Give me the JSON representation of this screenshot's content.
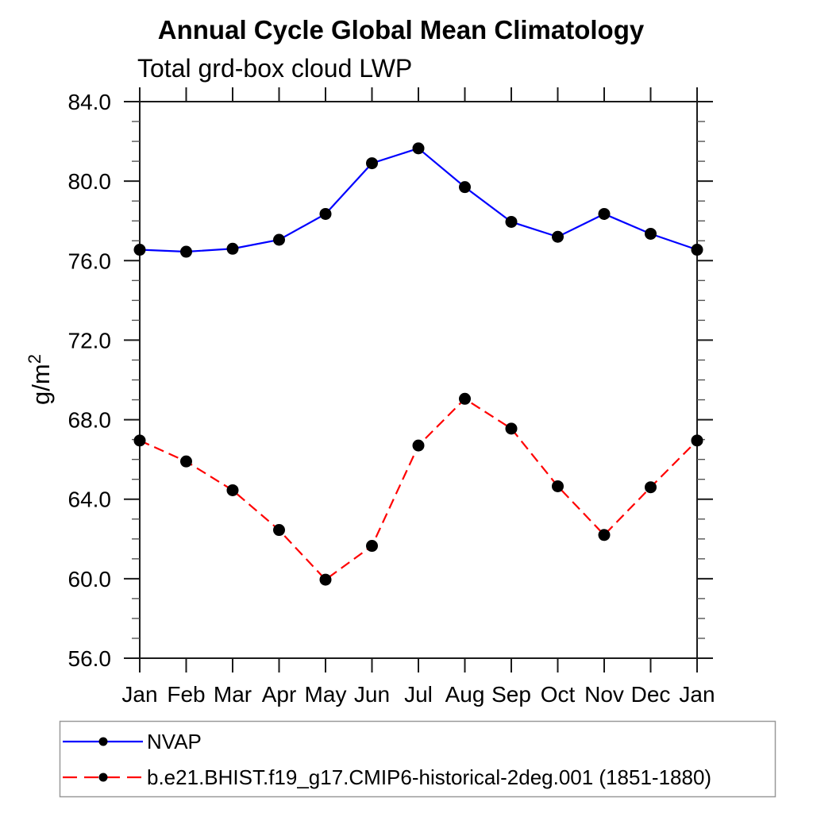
{
  "chart_data": {
    "type": "line",
    "title": "Annual Cycle Global Mean Climatology",
    "subtitle": "Total grd-box cloud LWP",
    "ylabel": "g/m²",
    "ylabel_base": "g/m",
    "ylabel_sup": "2",
    "categories": [
      "Jan",
      "Feb",
      "Mar",
      "Apr",
      "May",
      "Jun",
      "Jul",
      "Aug",
      "Sep",
      "Oct",
      "Nov",
      "Dec",
      "Jan"
    ],
    "ylim": [
      56.0,
      84.0
    ],
    "ytick_major_interval": 4,
    "ytick_minor_interval": 1,
    "ytick_labels": [
      "56.0",
      "60.0",
      "64.0",
      "68.0",
      "72.0",
      "76.0",
      "80.0",
      "84.0"
    ],
    "grid": false,
    "legend_position": "bottom",
    "axis_color": "#1a1a1a",
    "minor_tick_color": "#555555",
    "marker_color": "#000000",
    "legend_border_color": "#999999",
    "series": [
      {
        "name": "NVAP",
        "color": "#0000ff",
        "line_style": "solid",
        "values": [
          76.55,
          76.45,
          76.6,
          77.05,
          78.35,
          80.9,
          81.65,
          79.7,
          77.95,
          77.2,
          78.35,
          77.35,
          76.55
        ]
      },
      {
        "name": "b.e21.BHIST.f19_g17.CMIP6-historical-2deg.001 (1851-1880)",
        "color": "#ff0000",
        "line_style": "dashed",
        "dash": "13 7",
        "legend_dash": "18 9",
        "values": [
          66.95,
          65.9,
          64.45,
          62.45,
          59.95,
          61.65,
          66.7,
          69.05,
          67.55,
          64.65,
          62.2,
          64.6,
          66.95
        ]
      }
    ]
  }
}
